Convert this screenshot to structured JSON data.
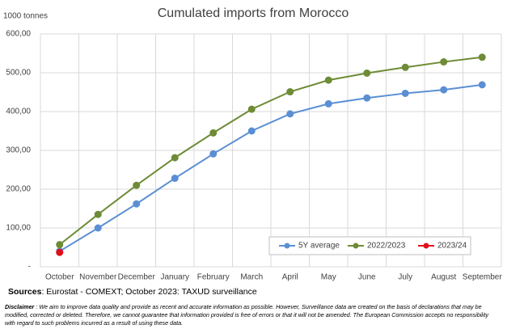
{
  "chart_data": {
    "type": "line",
    "title": "Cumulated imports from Morocco",
    "y_unit": "1000 tonnes",
    "categories": [
      "October",
      "November",
      "December",
      "January",
      "February",
      "March",
      "April",
      "May",
      "June",
      "July",
      "August",
      "September"
    ],
    "series": [
      {
        "name": "5Y average",
        "color": "#5b8fd4",
        "values": [
          40,
          100,
          162,
          228,
          291,
          350,
          394,
          420,
          435,
          447,
          456,
          469
        ]
      },
      {
        "name": "2022/2023",
        "color": "#6e8b35",
        "values": [
          57,
          135,
          210,
          281,
          345,
          406,
          451,
          481,
          499,
          514,
          528,
          540
        ]
      },
      {
        "name": "2023/24",
        "color": "#e0101a",
        "values": [
          37,
          null,
          null,
          null,
          null,
          null,
          null,
          null,
          null,
          null,
          null,
          null
        ]
      }
    ],
    "ylim": [
      0,
      600
    ],
    "yticks": [
      {
        "value": 0,
        "label": "-"
      },
      {
        "value": 100,
        "label": "100,00"
      },
      {
        "value": 200,
        "label": "200,00"
      },
      {
        "value": 300,
        "label": "300,00"
      },
      {
        "value": 400,
        "label": "400,00"
      },
      {
        "value": 500,
        "label": "500,00"
      },
      {
        "value": 600,
        "label": "600,00"
      }
    ],
    "grid": true,
    "legend": "bottom-right"
  },
  "sources_label": "Sources",
  "sources_text": ": Eurostat - COMEXT; October 2023: TAXUD surveillance",
  "disclaimer_label": "Disclaimer",
  "disclaimer_text": " : We aim to improve data quality and provide as recent and accurate information as possible. However, Surveillance data are created on the basis of declarations that may be modified, corrected or deleted. Therefore, we cannot guarantee that information provided is free of errors or that it will not be amended. The European Commission accepts no responsibility with regard to such problems incurred as a result of using these data."
}
